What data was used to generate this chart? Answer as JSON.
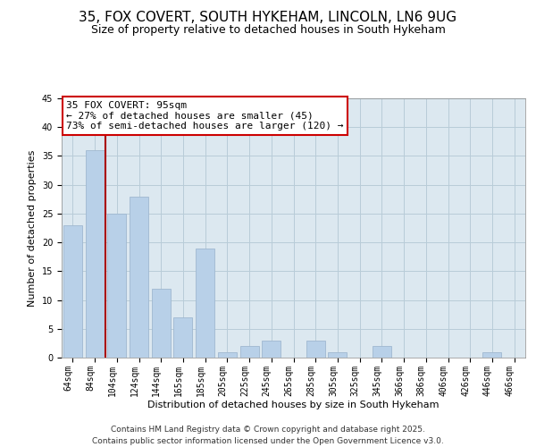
{
  "title": "35, FOX COVERT, SOUTH HYKEHAM, LINCOLN, LN6 9UG",
  "subtitle": "Size of property relative to detached houses in South Hykeham",
  "xlabel": "Distribution of detached houses by size in South Hykeham",
  "ylabel": "Number of detached properties",
  "categories": [
    "64sqm",
    "84sqm",
    "104sqm",
    "124sqm",
    "144sqm",
    "165sqm",
    "185sqm",
    "205sqm",
    "225sqm",
    "245sqm",
    "265sqm",
    "285sqm",
    "305sqm",
    "325sqm",
    "345sqm",
    "366sqm",
    "386sqm",
    "406sqm",
    "426sqm",
    "446sqm",
    "466sqm"
  ],
  "values": [
    23,
    36,
    25,
    28,
    12,
    7,
    19,
    1,
    2,
    3,
    0,
    3,
    1,
    0,
    2,
    0,
    0,
    0,
    0,
    1,
    0
  ],
  "bar_color": "#b8d0e8",
  "bar_edge_color": "#a0b8d0",
  "vline_x": 1.5,
  "vline_color": "#aa0000",
  "ylim": [
    0,
    45
  ],
  "yticks": [
    0,
    5,
    10,
    15,
    20,
    25,
    30,
    35,
    40,
    45
  ],
  "annotation_title": "35 FOX COVERT: 95sqm",
  "annotation_line1": "← 27% of detached houses are smaller (45)",
  "annotation_line2": "73% of semi-detached houses are larger (120) →",
  "annotation_box_color": "#ffffff",
  "annotation_box_edge": "#cc0000",
  "plot_bg_color": "#dce8f0",
  "background_color": "#ffffff",
  "grid_color": "#b8ccd8",
  "footer1": "Contains HM Land Registry data © Crown copyright and database right 2025.",
  "footer2": "Contains public sector information licensed under the Open Government Licence v3.0.",
  "title_fontsize": 11,
  "subtitle_fontsize": 9,
  "axis_label_fontsize": 8,
  "tick_fontsize": 7,
  "annotation_fontsize": 8,
  "footer_fontsize": 6.5
}
